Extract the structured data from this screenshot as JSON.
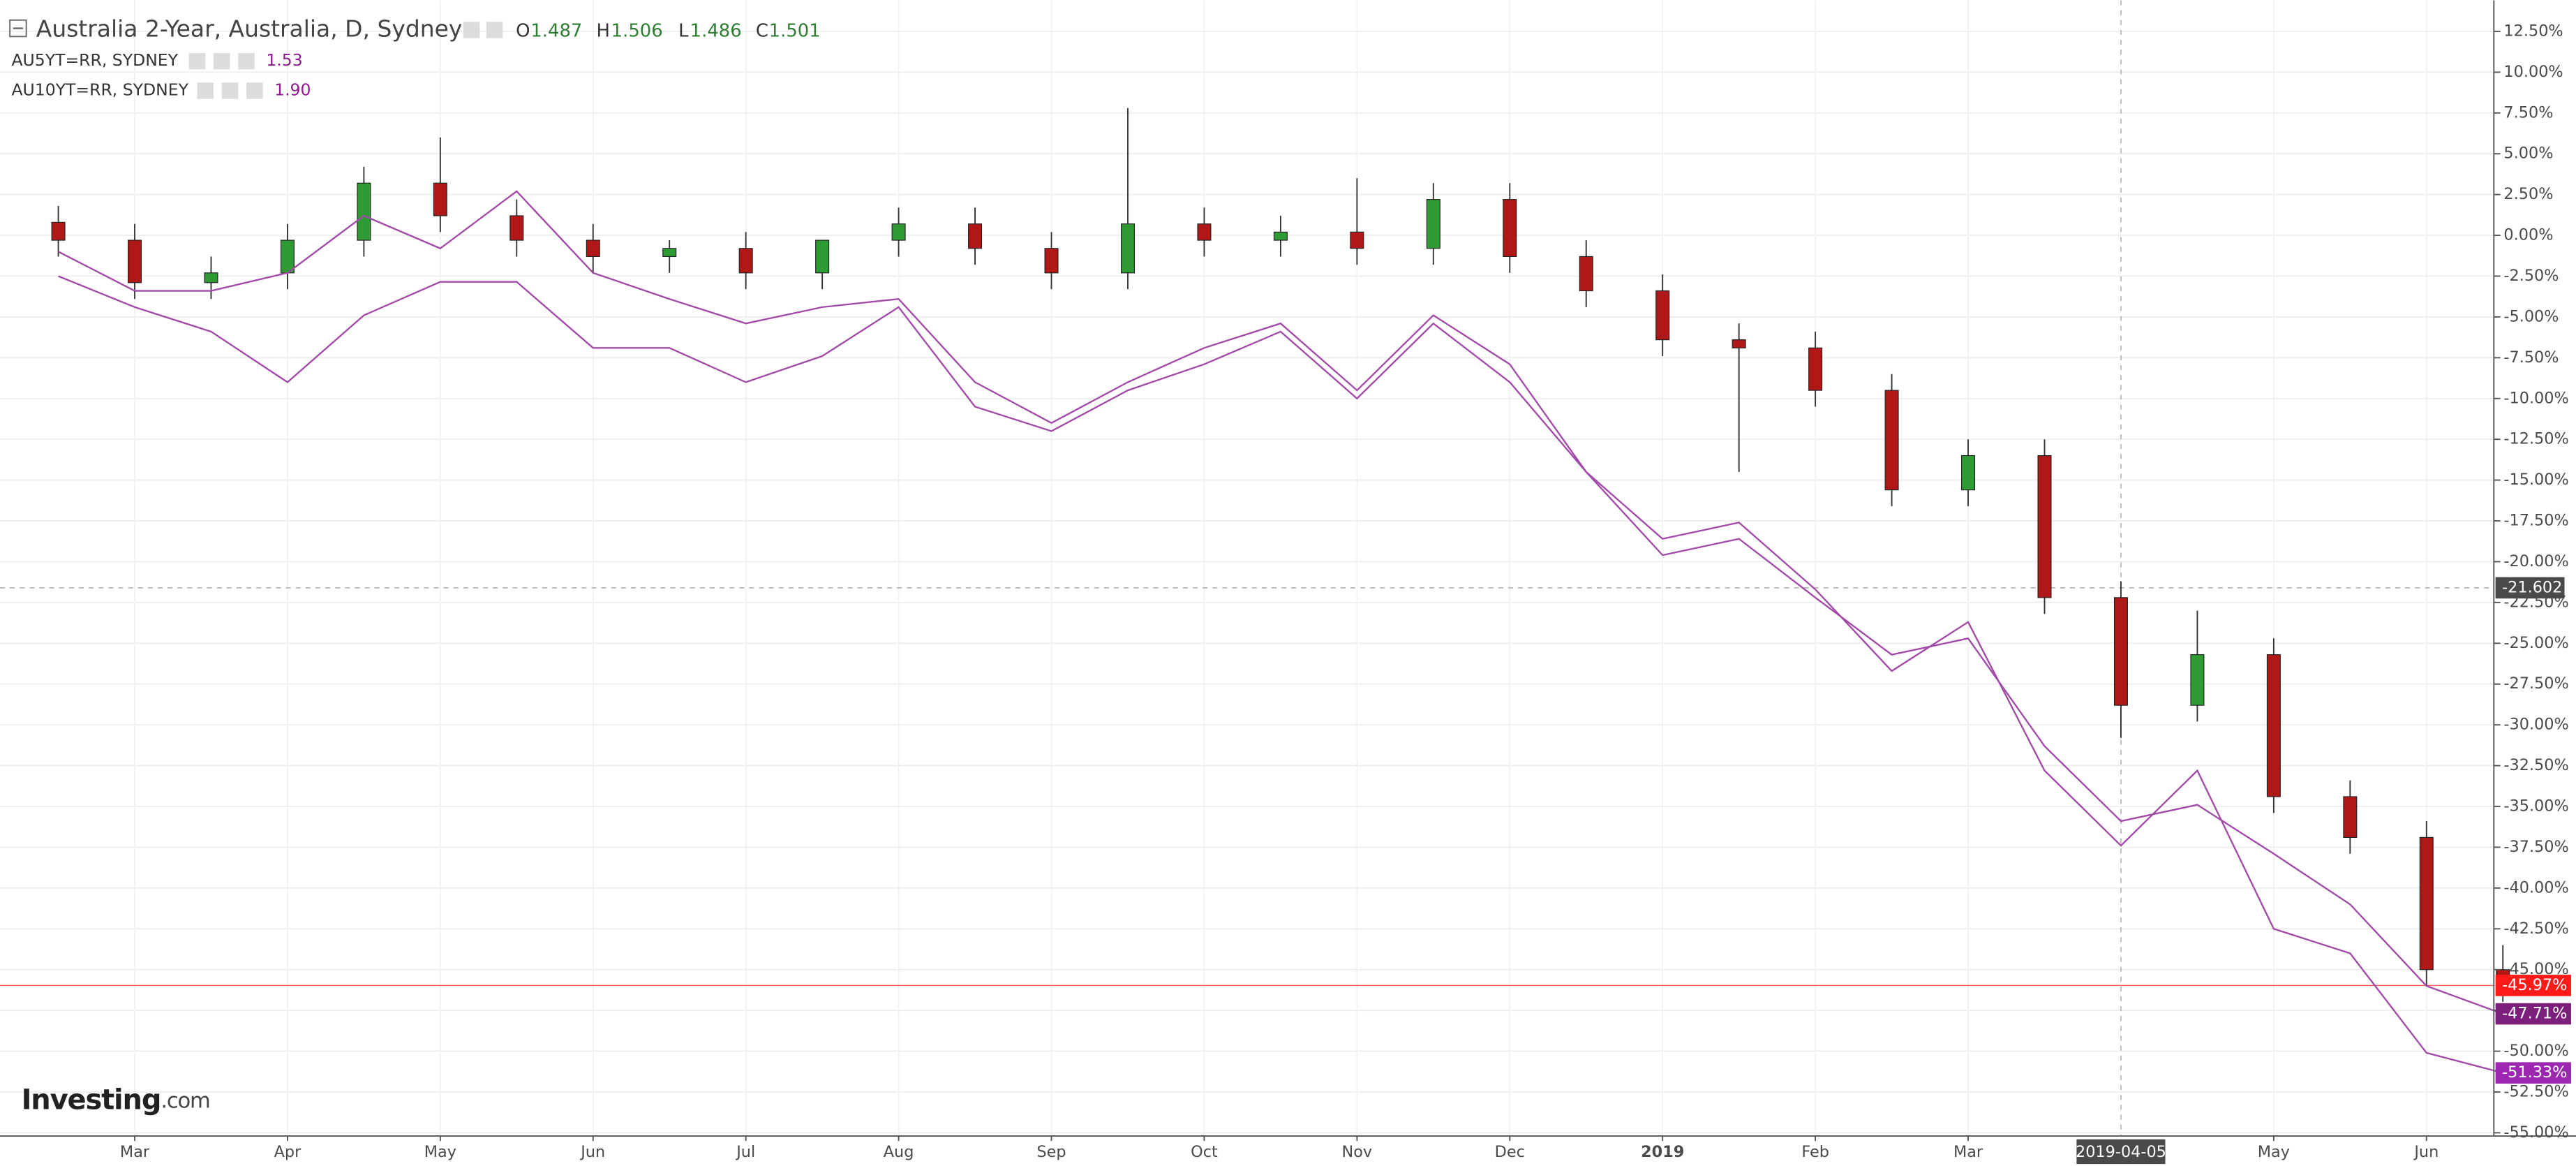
{
  "chart_data": {
    "type": "candlestick",
    "title": "Australia 2-Year, Australia, D, Sydney",
    "categories": [
      null,
      "Mar",
      null,
      "Apr",
      null,
      "May",
      null,
      "Jun",
      null,
      "Jul",
      null,
      "Aug",
      null,
      "Sep",
      null,
      "Oct",
      null,
      "Nov",
      null,
      "Dec",
      null,
      "2019",
      null,
      "Feb",
      null,
      "Mar",
      null,
      "2019-04-05",
      null,
      "May",
      null,
      "Jun",
      null
    ],
    "crosshair_category": "2019-04-05",
    "crosshair_y": -21.602,
    "ylim": [
      -55.2,
      14.4
    ],
    "yticks": [
      {
        "value": 12.5,
        "label": "12.50%"
      },
      {
        "value": 10,
        "label": "10.00%"
      },
      {
        "value": 7.5,
        "label": "7.50%"
      },
      {
        "value": 5,
        "label": "5.00%"
      },
      {
        "value": 2.5,
        "label": "2.50%"
      },
      {
        "value": 0,
        "label": "0.00%"
      },
      {
        "value": -2.5,
        "label": "-2.50%"
      },
      {
        "value": -5,
        "label": "-5.00%"
      },
      {
        "value": -7.5,
        "label": "-7.50%"
      },
      {
        "value": -10,
        "label": "-10.00%"
      },
      {
        "value": -12.5,
        "label": "-12.50%"
      },
      {
        "value": -15,
        "label": "-15.00%"
      },
      {
        "value": -17.5,
        "label": "-17.50%"
      },
      {
        "value": -20,
        "label": "-20.00%"
      },
      {
        "value": -22.5,
        "label": "-22.50%"
      },
      {
        "value": -25,
        "label": "-25.00%"
      },
      {
        "value": -27.5,
        "label": "-27.50%"
      },
      {
        "value": -30,
        "label": "-30.00%"
      },
      {
        "value": -32.5,
        "label": "-32.50%"
      },
      {
        "value": -35,
        "label": "-35.00%"
      },
      {
        "value": -37.5,
        "label": "-37.50%"
      },
      {
        "value": -40,
        "label": "-40.00%"
      },
      {
        "value": -42.5,
        "label": "-42.50%"
      },
      {
        "value": -45,
        "label": "-45.00%"
      },
      {
        "value": -47.5,
        "label": "-47.50%"
      },
      {
        "value": -50,
        "label": "-50.00%"
      },
      {
        "value": -52.5,
        "label": "-52.50%"
      },
      {
        "value": -55,
        "label": "-55.00%"
      }
    ],
    "grid": true,
    "logo": {
      "brand": "Investing",
      "suffix": ".com"
    },
    "series": [
      {
        "name": "Australia 2-Year, Australia, D, Sydney",
        "type": "candlestick",
        "color_up": "#2e9b35",
        "color_down": "#b01818",
        "color": "#ff1a1a",
        "header": {
          "o_key": "O",
          "o": "1.487",
          "h_key": "H",
          "h": "1.506",
          "l_key": "L",
          "l": "1.486",
          "c_key": "C",
          "c": "1.501"
        },
        "open": [
          0.8,
          -0.3,
          -2.9,
          -2.3,
          -0.3,
          3.2,
          1.2,
          -0.3,
          -1.3,
          -0.8,
          -2.3,
          -0.3,
          0.7,
          -0.8,
          -2.3,
          0.7,
          -0.3,
          0.2,
          -0.8,
          2.2,
          -1.3,
          -3.4,
          -6.4,
          -6.9,
          -9.5,
          -15.6,
          -13.5,
          -22.2,
          -28.8,
          -25.7,
          -34.4,
          -36.9,
          -45.0
        ],
        "high": [
          1.8,
          0.7,
          -1.3,
          0.7,
          4.2,
          6.0,
          2.2,
          0.7,
          -0.3,
          0.2,
          -0.3,
          1.7,
          1.7,
          0.2,
          7.8,
          1.7,
          1.2,
          3.5,
          3.2,
          3.2,
          -0.3,
          -2.4,
          -5.4,
          -5.9,
          -8.5,
          -12.5,
          -12.5,
          -21.2,
          -23.0,
          -24.7,
          -33.4,
          -35.9,
          -43.5
        ],
        "low": [
          -1.3,
          -3.9,
          -3.9,
          -3.3,
          -1.3,
          0.2,
          -1.3,
          -2.3,
          -2.3,
          -3.3,
          -3.3,
          -1.3,
          -1.8,
          -3.3,
          -3.3,
          -1.3,
          -1.3,
          -1.8,
          -1.8,
          -2.3,
          -4.4,
          -7.4,
          -14.5,
          -10.5,
          -16.6,
          -16.6,
          -23.2,
          -30.8,
          -29.8,
          -35.4,
          -37.9,
          -46.0,
          -46.97
        ],
        "close": [
          -0.3,
          -2.9,
          -2.3,
          -0.3,
          3.2,
          1.2,
          -0.3,
          -1.3,
          -0.8,
          -2.3,
          -0.3,
          0.7,
          -0.8,
          -2.3,
          0.7,
          -0.3,
          0.2,
          -0.8,
          2.2,
          -1.3,
          -3.4,
          -6.4,
          -6.9,
          -9.5,
          -15.6,
          -13.5,
          -22.2,
          -28.8,
          -25.7,
          -34.4,
          -36.9,
          -45.0,
          -45.97
        ],
        "value_labels": [
          null,
          null,
          null,
          null,
          null,
          null,
          null,
          null,
          null,
          null,
          null,
          null,
          null,
          null,
          null,
          null,
          null,
          null,
          null,
          null,
          null,
          null,
          null,
          null,
          null,
          null,
          null,
          null,
          null,
          null,
          null,
          null,
          "-45.97%"
        ]
      },
      {
        "name": "AU5YT=RR, SYDNEY",
        "type": "line",
        "color": "#a24aa8",
        "label_color": "#9c27b0",
        "header_value": "1.53",
        "values": [
          -1.0,
          -3.4,
          -3.4,
          -2.3,
          1.2,
          -0.8,
          2.7,
          -2.3,
          -3.9,
          -5.4,
          -4.4,
          -3.9,
          -9.0,
          -11.5,
          -9.0,
          -6.9,
          -5.4,
          -9.5,
          -4.9,
          -7.9,
          -14.5,
          -18.6,
          -17.6,
          -21.7,
          -26.7,
          -23.7,
          -32.8,
          -37.4,
          -32.8,
          -42.5,
          -44.0,
          -50.1,
          -51.33
        ],
        "value_labels": [
          null,
          null,
          null,
          null,
          null,
          null,
          null,
          null,
          null,
          null,
          null,
          null,
          null,
          null,
          null,
          null,
          null,
          null,
          null,
          null,
          null,
          null,
          null,
          null,
          null,
          null,
          null,
          null,
          null,
          null,
          null,
          null,
          "-51.33%"
        ]
      },
      {
        "name": "AU10YT=RR, SYDNEY",
        "type": "line",
        "color": "#a24aa8",
        "label_color": "#7b1f7b",
        "header_value": "1.90",
        "values": [
          -2.5,
          -4.4,
          -5.9,
          -9.0,
          -4.9,
          -2.85,
          -2.85,
          -6.9,
          -6.9,
          -9.0,
          -7.4,
          -4.4,
          -10.5,
          -12.0,
          -9.5,
          -7.9,
          -5.9,
          -10.0,
          -5.4,
          -9.0,
          -14.5,
          -19.6,
          -18.6,
          -22.2,
          -25.7,
          -24.7,
          -31.3,
          -35.9,
          -34.9,
          -37.9,
          -41.0,
          -46.0,
          -47.71
        ],
        "value_labels": [
          null,
          null,
          null,
          null,
          null,
          null,
          null,
          null,
          null,
          null,
          null,
          null,
          null,
          null,
          null,
          null,
          null,
          null,
          null,
          null,
          null,
          null,
          null,
          null,
          null,
          null,
          null,
          null,
          null,
          null,
          null,
          null,
          "-47.71%"
        ]
      }
    ]
  }
}
